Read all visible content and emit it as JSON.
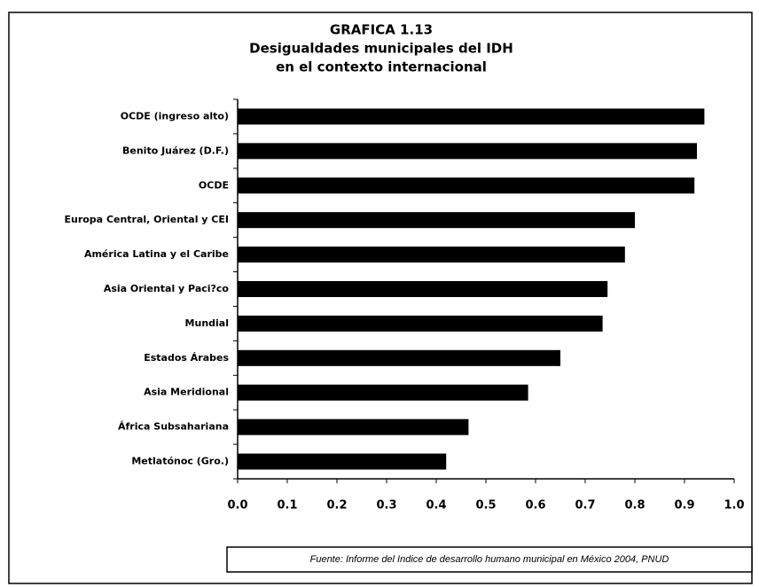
{
  "chart_data": {
    "type": "bar",
    "orientation": "horizontal",
    "title": [
      "GRAFICA 1.13",
      "Desigualdades municipales del IDH",
      "en el contexto internacional"
    ],
    "categories": [
      "OCDE (ingreso alto)",
      "Benito Juárez (D.F.)",
      "OCDE",
      "Europa Central, Oriental y CEI",
      "América Latina y el Caribe",
      "Asia Oriental y Paci?co",
      "Mundial",
      "Estados Árabes",
      "Asia Meridional",
      "África Subsahariana",
      "Metlatónoc (Gro.)"
    ],
    "values": [
      0.94,
      0.925,
      0.92,
      0.8,
      0.78,
      0.745,
      0.735,
      0.65,
      0.585,
      0.465,
      0.42
    ],
    "color": "#000000",
    "xlim": [
      0,
      1
    ],
    "xticks": [
      {
        "value": 0,
        "label": "0.0"
      },
      0.1,
      0.2,
      0.3,
      0.4,
      0.5,
      0.6,
      0.7,
      0.8,
      0.9,
      {
        "value": 1,
        "label": "1.0"
      }
    ],
    "grid": false,
    "note": "Fuente: Informe del Indice de desarrollo humano municipal en México 2004, PNUD"
  }
}
